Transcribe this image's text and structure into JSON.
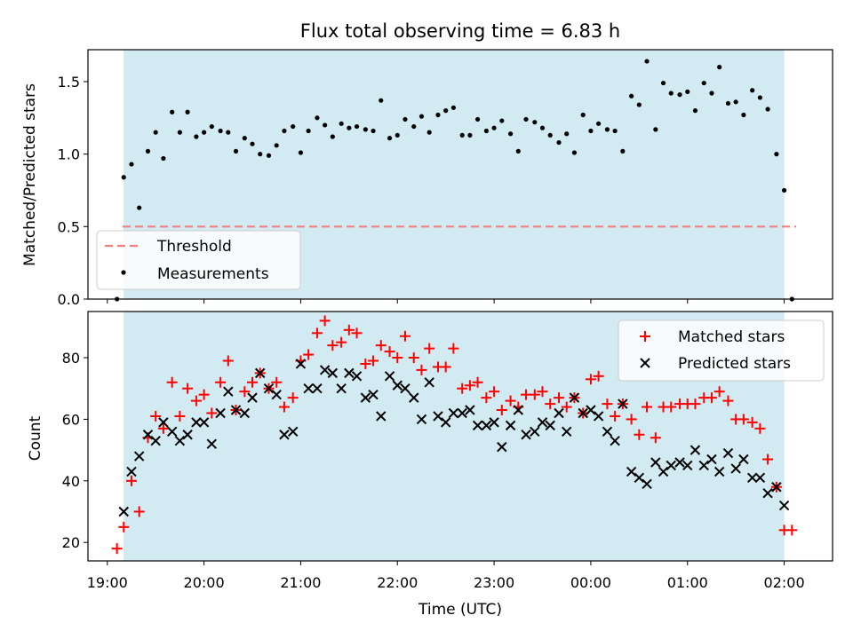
{
  "chart_data": [
    {
      "type": "scatter",
      "title": "Flux total observing time = 6.83 h",
      "ylabel": "Matched/Predicted stars",
      "xlabel": "",
      "x_unit": "hours after 19:00 UTC",
      "xlim": [
        18.8,
        26.5
      ],
      "ylim": [
        0.0,
        1.72
      ],
      "yticks": [
        "0.0",
        "0.5",
        "1.0",
        "1.5"
      ],
      "shaded_interval": [
        "19:10",
        "02:00"
      ],
      "threshold": {
        "name": "Threshold",
        "value": 0.5,
        "color": "#f08080"
      },
      "legend": {
        "position": "lower-left",
        "threshold_label": "Threshold",
        "measurement_label": "Measurements"
      },
      "series": [
        {
          "name": "Measurements",
          "color": "#000000",
          "x": [
            19.1,
            19.17,
            19.25,
            19.33,
            19.42,
            19.5,
            19.58,
            19.67,
            19.75,
            19.83,
            19.92,
            20.0,
            20.08,
            20.17,
            20.25,
            20.33,
            20.42,
            20.5,
            20.58,
            20.67,
            20.75,
            20.83,
            20.92,
            21.0,
            21.08,
            21.17,
            21.25,
            21.33,
            21.42,
            21.5,
            21.58,
            21.67,
            21.75,
            21.83,
            21.92,
            22.0,
            22.08,
            22.17,
            22.25,
            22.33,
            22.42,
            22.5,
            22.58,
            22.67,
            22.75,
            22.83,
            22.92,
            23.0,
            23.08,
            23.17,
            23.25,
            23.33,
            23.42,
            23.5,
            23.58,
            23.67,
            23.75,
            23.83,
            23.92,
            24.0,
            24.08,
            24.17,
            24.25,
            24.33,
            24.42,
            24.5,
            24.58,
            24.67,
            24.75,
            24.83,
            24.92,
            25.0,
            25.08,
            25.17,
            25.25,
            25.33,
            25.42,
            25.5,
            25.58,
            25.67,
            25.75,
            25.83,
            25.92,
            26.0,
            26.08
          ],
          "y": [
            0.0,
            0.84,
            0.93,
            0.63,
            1.02,
            1.15,
            0.97,
            1.29,
            1.15,
            1.29,
            1.12,
            1.15,
            1.19,
            1.16,
            1.15,
            1.02,
            1.11,
            1.07,
            1.0,
            0.99,
            1.06,
            1.16,
            1.19,
            1.01,
            1.16,
            1.25,
            1.2,
            1.12,
            1.21,
            1.18,
            1.19,
            1.17,
            1.16,
            1.37,
            1.11,
            1.13,
            1.24,
            1.19,
            1.26,
            1.15,
            1.27,
            1.3,
            1.32,
            1.13,
            1.13,
            1.24,
            1.16,
            1.18,
            1.23,
            1.14,
            1.02,
            1.24,
            1.22,
            1.18,
            1.13,
            1.08,
            1.14,
            1.01,
            1.27,
            1.16,
            1.21,
            1.17,
            1.16,
            1.02,
            1.4,
            1.34,
            1.64,
            1.17,
            1.49,
            1.42,
            1.41,
            1.43,
            1.3,
            1.49,
            1.42,
            1.6,
            1.35,
            1.36,
            1.27,
            1.44,
            1.39,
            1.31,
            1.0,
            0.75,
            0.0
          ]
        }
      ]
    },
    {
      "type": "scatter",
      "title": "",
      "xlabel": "Time (UTC)",
      "ylabel": "Count",
      "x_unit": "hours after 19:00 UTC",
      "xlim": [
        18.8,
        26.5
      ],
      "ylim": [
        14,
        95
      ],
      "yticks": [
        "20",
        "40",
        "60",
        "80"
      ],
      "xticks": [
        "19:00",
        "20:00",
        "21:00",
        "22:00",
        "23:00",
        "00:00",
        "01:00",
        "02:00"
      ],
      "shaded_interval": [
        "19:10",
        "02:00"
      ],
      "legend": {
        "position": "top-right"
      },
      "series": [
        {
          "name": "Matched stars",
          "marker": "plus",
          "color": "#ff0000",
          "x": [
            19.1,
            19.17,
            19.25,
            19.33,
            19.42,
            19.5,
            19.58,
            19.67,
            19.75,
            19.83,
            19.92,
            20.0,
            20.08,
            20.17,
            20.25,
            20.33,
            20.42,
            20.5,
            20.58,
            20.67,
            20.75,
            20.83,
            20.92,
            21.0,
            21.08,
            21.17,
            21.25,
            21.33,
            21.42,
            21.5,
            21.58,
            21.67,
            21.75,
            21.83,
            21.92,
            22.0,
            22.08,
            22.17,
            22.25,
            22.33,
            22.42,
            22.5,
            22.58,
            22.67,
            22.75,
            22.83,
            22.92,
            23.0,
            23.08,
            23.17,
            23.25,
            23.33,
            23.42,
            23.5,
            23.58,
            23.67,
            23.75,
            23.83,
            23.92,
            24.0,
            24.08,
            24.17,
            24.25,
            24.33,
            24.42,
            24.5,
            24.58,
            24.67,
            24.75,
            24.83,
            24.92,
            25.0,
            25.08,
            25.17,
            25.25,
            25.33,
            25.42,
            25.5,
            25.58,
            25.67,
            25.75,
            25.83,
            25.92,
            26.0,
            26.08
          ],
          "y": [
            18,
            25,
            40,
            30,
            54,
            61,
            57,
            72,
            61,
            70,
            66,
            68,
            62,
            72,
            79,
            63,
            69,
            72,
            75,
            70,
            72,
            64,
            67,
            79,
            81,
            88,
            92,
            84,
            85,
            89,
            88,
            78,
            79,
            84,
            82,
            80,
            87,
            80,
            76,
            83,
            77,
            77,
            83,
            70,
            71,
            72,
            67,
            69,
            63,
            66,
            64,
            68,
            68,
            69,
            65,
            67,
            64,
            67,
            62,
            73,
            74,
            65,
            61,
            65,
            60,
            55,
            64,
            54,
            64,
            64,
            65,
            65,
            65,
            67,
            67,
            69,
            66,
            60,
            60,
            59,
            57,
            47,
            38,
            24,
            24
          ]
        },
        {
          "name": "Predicted stars",
          "marker": "x",
          "color": "#000000",
          "x": [
            19.17,
            19.25,
            19.33,
            19.42,
            19.5,
            19.58,
            19.67,
            19.75,
            19.83,
            19.92,
            20.0,
            20.08,
            20.17,
            20.25,
            20.33,
            20.42,
            20.5,
            20.58,
            20.67,
            20.75,
            20.83,
            20.92,
            21.0,
            21.08,
            21.17,
            21.25,
            21.33,
            21.42,
            21.5,
            21.58,
            21.67,
            21.75,
            21.83,
            21.92,
            22.0,
            22.08,
            22.17,
            22.25,
            22.33,
            22.42,
            22.5,
            22.58,
            22.67,
            22.75,
            22.83,
            22.92,
            23.0,
            23.08,
            23.17,
            23.25,
            23.33,
            23.42,
            23.5,
            23.58,
            23.67,
            23.75,
            23.83,
            23.92,
            24.0,
            24.08,
            24.17,
            24.25,
            24.33,
            24.42,
            24.5,
            24.58,
            24.67,
            24.75,
            24.83,
            24.92,
            25.0,
            25.08,
            25.17,
            25.25,
            25.33,
            25.42,
            25.5,
            25.58,
            25.67,
            25.75,
            25.83,
            25.92,
            26.0
          ],
          "y": [
            30,
            43,
            48,
            55,
            53,
            59,
            56,
            53,
            55,
            59,
            59,
            52,
            62,
            69,
            63,
            62,
            67,
            75,
            70,
            68,
            55,
            56,
            78,
            70,
            70,
            76,
            75,
            70,
            75,
            74,
            67,
            68,
            61,
            74,
            71,
            70,
            67,
            60,
            72,
            61,
            59,
            62,
            62,
            63,
            58,
            58,
            59,
            51,
            58,
            63,
            55,
            56,
            59,
            58,
            62,
            56,
            67,
            62,
            63,
            61,
            56,
            53,
            65,
            43,
            41,
            39,
            46,
            43,
            45,
            46,
            45,
            50,
            45,
            47,
            43,
            49,
            44,
            47,
            41,
            41,
            36,
            38,
            32
          ]
        }
      ]
    }
  ]
}
